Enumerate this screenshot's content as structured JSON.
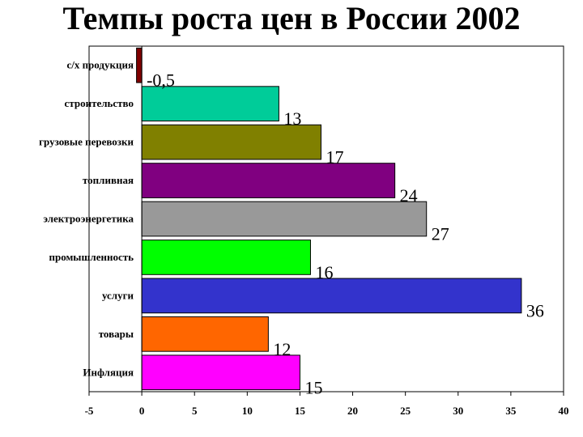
{
  "title": "Темпы роста цен в России 2002",
  "chart_data": {
    "type": "bar",
    "orientation": "horizontal",
    "title": "Темпы роста цен в России 2002",
    "categories": [
      "с/х продукция",
      "строительство",
      "грузовые перевозки",
      "топливная",
      "электроэнергетика",
      "промышленность",
      "услуги",
      "товары",
      "Инфляция"
    ],
    "values": [
      -0.5,
      13,
      17,
      24,
      27,
      16,
      36,
      12,
      15
    ],
    "value_labels": [
      "-0,5",
      "13",
      "17",
      "24",
      "27",
      "16",
      "36",
      "12",
      "15"
    ],
    "colors": [
      "#800000",
      "#00cc99",
      "#808000",
      "#800080",
      "#999999",
      "#00ff00",
      "#3333cc",
      "#ff6600",
      "#ff00ff"
    ],
    "xlim": [
      -5,
      40
    ],
    "xticks": [
      -5,
      0,
      5,
      10,
      15,
      20,
      25,
      30,
      35,
      40
    ],
    "grid": false,
    "legend": "none"
  }
}
